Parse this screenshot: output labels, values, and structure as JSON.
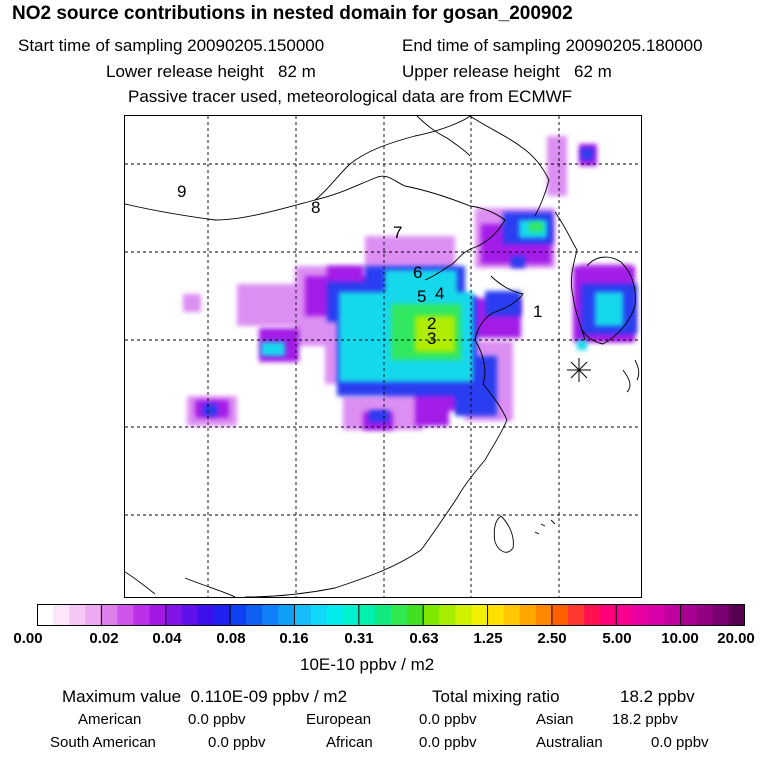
{
  "header": {
    "title": "NO2 source contributions in nested domain for gosan_200902",
    "start_label": "Start time of sampling 20090205.150000",
    "end_label": "End time of sampling 20090205.180000",
    "lower_label": "Lower release height   82 m",
    "upper_label": "Upper release height   62 m",
    "note": "Passive tracer used, meteorological data are from ECMWF"
  },
  "chart_data": {
    "type": "heatmap",
    "title": "NO2 source contributions in nested domain for gosan_200902",
    "colorbar_label": "10E-10 ppbv / m2",
    "colorbar_ticks": [
      "0.00",
      "0.02",
      "0.04",
      "0.08",
      "0.16",
      "0.31",
      "0.63",
      "1.25",
      "2.50",
      "5.00",
      "10.00",
      "20.00"
    ],
    "colorbar_colors": [
      "#ffffff",
      "#fbe6fb",
      "#f4c8f4",
      "#ecaaf0",
      "#dd80ec",
      "#cf55ea",
      "#bd2ee8",
      "#a418e6",
      "#8414e6",
      "#6010ea",
      "#3c10ec",
      "#2020f0",
      "#1040f4",
      "#1060f4",
      "#1080f8",
      "#10a0f8",
      "#18bcf8",
      "#10d8f8",
      "#00ecec",
      "#00f0d0",
      "#00f0b0",
      "#10e880",
      "#30e850",
      "#40e020",
      "#80e800",
      "#a8ec00",
      "#d0f000",
      "#f0f000",
      "#ffe000",
      "#ffc800",
      "#ffa800",
      "#ff8800",
      "#ff6000",
      "#ff3830",
      "#ff1050",
      "#ff0078",
      "#f80090",
      "#e800a0",
      "#d800a8",
      "#c000a0",
      "#a80090",
      "#900080",
      "#780070",
      "#580050"
    ],
    "source_labels": [
      "1",
      "2",
      "3",
      "4",
      "5",
      "6",
      "7",
      "8",
      "9"
    ],
    "receptor_marker": "asterisk",
    "grid": true
  },
  "footer": {
    "max_label": "Maximum value  0.110E-09 ppbv / m2",
    "total_label": "Total mixing ratio",
    "total_value": "18.2 ppbv",
    "american": {
      "label": "American",
      "value": "0.0 ppbv"
    },
    "european": {
      "label": "European",
      "value": "0.0 ppbv"
    },
    "asian": {
      "label": "Asian",
      "value": "18.2 ppbv"
    },
    "south_american": {
      "label": "South American",
      "value": "0.0 ppbv"
    },
    "african": {
      "label": "African",
      "value": "0.0 ppbv"
    },
    "australian": {
      "label": "Australian",
      "value": "0.0 ppbv"
    }
  }
}
